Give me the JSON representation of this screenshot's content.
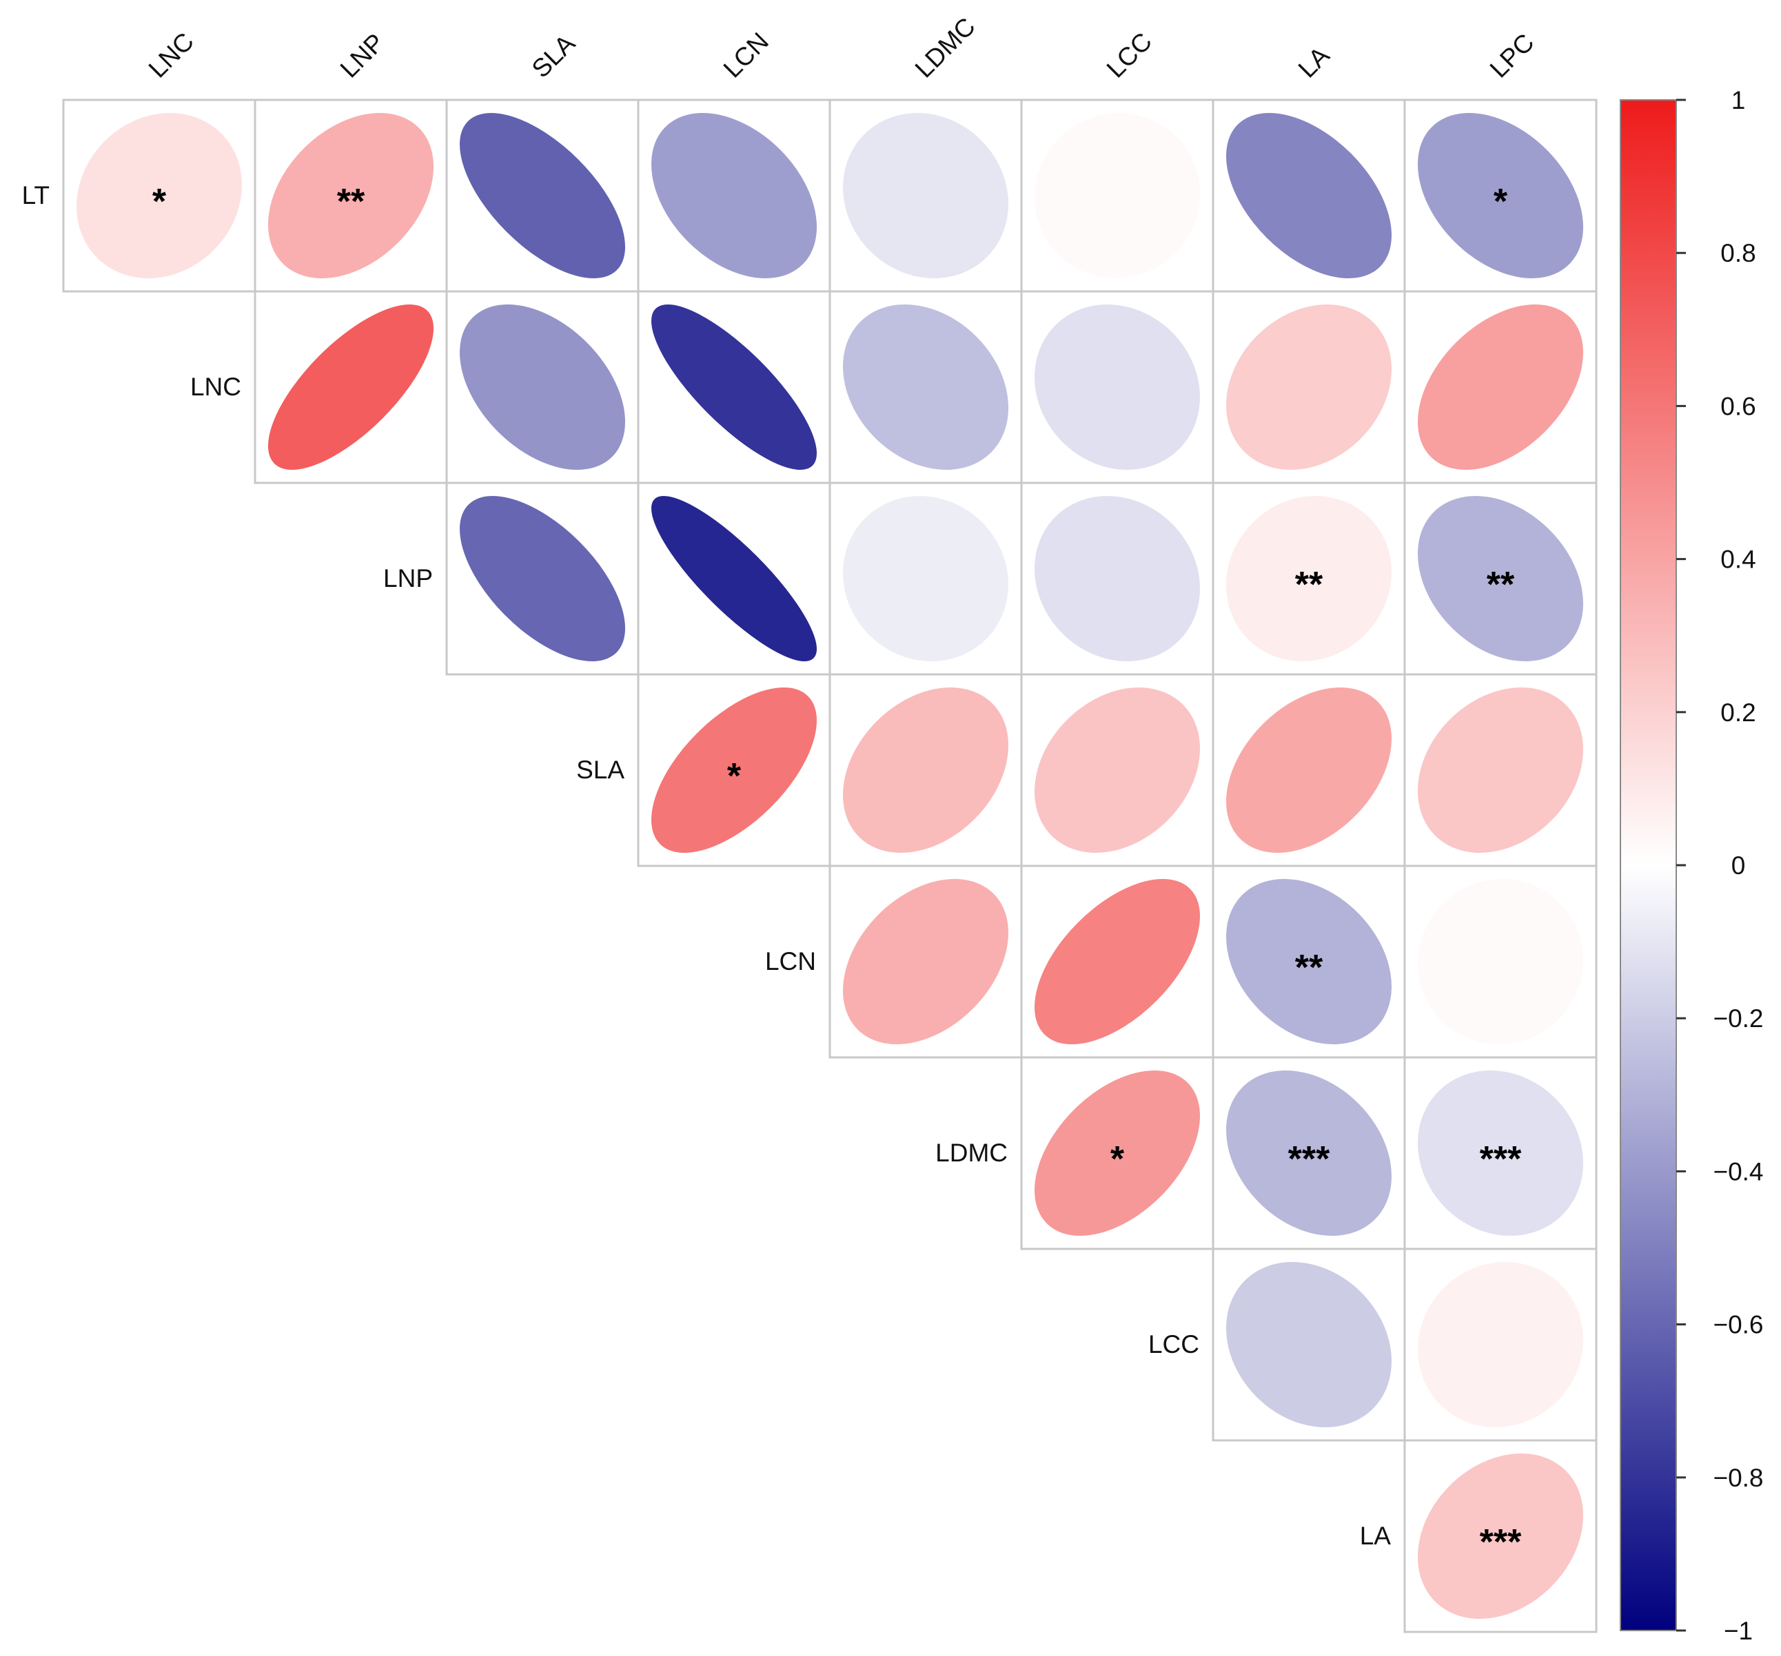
{
  "chart_data": {
    "type": "heatmap",
    "title": "",
    "style": "correlation-ellipse-upper-triangle",
    "row_labels": [
      "LT",
      "LNC",
      "LNP",
      "SLA",
      "LCN",
      "LDMC",
      "LCC",
      "LA"
    ],
    "col_labels": [
      "LNC",
      "LNP",
      "SLA",
      "LCN",
      "LDMC",
      "LCC",
      "LA",
      "LPC"
    ],
    "cells": [
      {
        "row": "LT",
        "col": "LNC",
        "r": 0.13,
        "sig": "*"
      },
      {
        "row": "LT",
        "col": "LNP",
        "r": 0.35,
        "sig": "**"
      },
      {
        "row": "LT",
        "col": "SLA",
        "r": -0.62,
        "sig": ""
      },
      {
        "row": "LT",
        "col": "LCN",
        "r": -0.38,
        "sig": ""
      },
      {
        "row": "LT",
        "col": "LDMC",
        "r": -0.1,
        "sig": ""
      },
      {
        "row": "LT",
        "col": "LCC",
        "r": 0.02,
        "sig": ""
      },
      {
        "row": "LT",
        "col": "LA",
        "r": -0.48,
        "sig": ""
      },
      {
        "row": "LT",
        "col": "LPC",
        "r": -0.38,
        "sig": "*"
      },
      {
        "row": "LNC",
        "col": "LNP",
        "r": 0.71,
        "sig": ""
      },
      {
        "row": "LNC",
        "col": "SLA",
        "r": -0.42,
        "sig": ""
      },
      {
        "row": "LNC",
        "col": "LCN",
        "r": -0.8,
        "sig": ""
      },
      {
        "row": "LNC",
        "col": "LDMC",
        "r": -0.25,
        "sig": ""
      },
      {
        "row": "LNC",
        "col": "LCC",
        "r": -0.12,
        "sig": ""
      },
      {
        "row": "LNC",
        "col": "LA",
        "r": 0.22,
        "sig": ""
      },
      {
        "row": "LNC",
        "col": "LPC",
        "r": 0.42,
        "sig": ""
      },
      {
        "row": "LNP",
        "col": "SLA",
        "r": -0.6,
        "sig": ""
      },
      {
        "row": "LNP",
        "col": "LCN",
        "r": -0.85,
        "sig": ""
      },
      {
        "row": "LNP",
        "col": "LDMC",
        "r": -0.07,
        "sig": ""
      },
      {
        "row": "LNP",
        "col": "LCC",
        "r": -0.12,
        "sig": ""
      },
      {
        "row": "LNP",
        "col": "LA",
        "r": 0.08,
        "sig": "**"
      },
      {
        "row": "LNP",
        "col": "LPC",
        "r": -0.3,
        "sig": "**"
      },
      {
        "row": "SLA",
        "col": "LCN",
        "r": 0.6,
        "sig": "*"
      },
      {
        "row": "SLA",
        "col": "LDMC",
        "r": 0.3,
        "sig": ""
      },
      {
        "row": "SLA",
        "col": "LCC",
        "r": 0.26,
        "sig": ""
      },
      {
        "row": "SLA",
        "col": "LA",
        "r": 0.38,
        "sig": ""
      },
      {
        "row": "SLA",
        "col": "LPC",
        "r": 0.25,
        "sig": ""
      },
      {
        "row": "LCN",
        "col": "LDMC",
        "r": 0.35,
        "sig": ""
      },
      {
        "row": "LCN",
        "col": "LCC",
        "r": 0.55,
        "sig": ""
      },
      {
        "row": "LCN",
        "col": "LA",
        "r": -0.3,
        "sig": "**"
      },
      {
        "row": "LCN",
        "col": "LPC",
        "r": 0.02,
        "sig": ""
      },
      {
        "row": "LDMC",
        "col": "LCC",
        "r": 0.45,
        "sig": "*"
      },
      {
        "row": "LDMC",
        "col": "LA",
        "r": -0.28,
        "sig": "***"
      },
      {
        "row": "LDMC",
        "col": "LPC",
        "r": -0.12,
        "sig": "***"
      },
      {
        "row": "LCC",
        "col": "LA",
        "r": -0.2,
        "sig": ""
      },
      {
        "row": "LCC",
        "col": "LPC",
        "r": 0.06,
        "sig": ""
      },
      {
        "row": "LA",
        "col": "LPC",
        "r": 0.25,
        "sig": "***"
      }
    ],
    "colorbar": {
      "range": [
        -1,
        1
      ],
      "ticks": [
        1,
        0.8,
        0.6,
        0.4,
        0.2,
        0,
        -0.2,
        -0.4,
        -0.6,
        -0.8,
        -1
      ],
      "tick_labels": [
        "1",
        "0.8",
        "0.6",
        "0.4",
        "0.2",
        "0",
        "−0.2",
        "−0.4",
        "−0.6",
        "−0.8",
        "−1"
      ],
      "colors": {
        "negative": "#00007F",
        "mid": "#FFFFFF",
        "positive": "#EE1B1B"
      }
    }
  }
}
